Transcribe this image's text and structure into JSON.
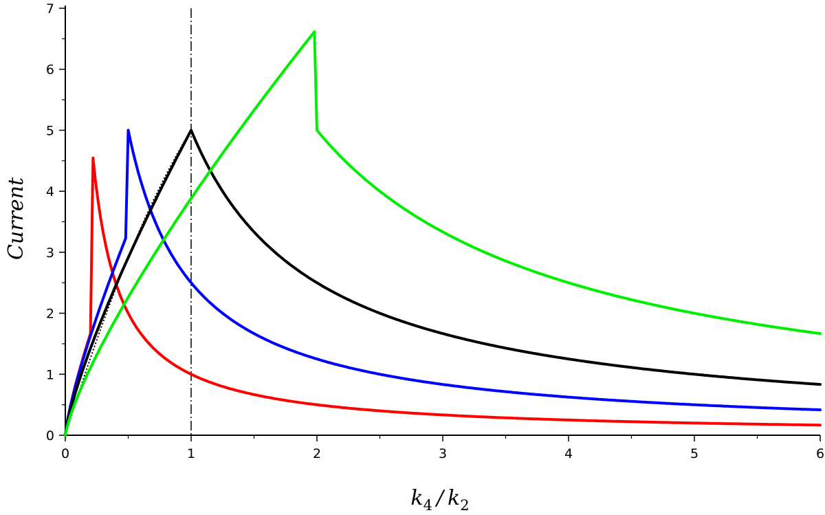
{
  "chart_data": {
    "type": "line",
    "xlabel": {
      "k": "k",
      "k_sub": "4",
      "slash": "/",
      "k2": "k",
      "k2_sub": "2"
    },
    "ylabel": "Current",
    "xlim": [
      0,
      6
    ],
    "ylim": [
      0,
      7
    ],
    "x_ticks": [
      "0",
      "1",
      "2",
      "3",
      "4",
      "5",
      "6"
    ],
    "y_ticks": [
      "0",
      "1",
      "2",
      "3",
      "4",
      "5",
      "6",
      "7"
    ],
    "grid": false,
    "legend": "none",
    "reference_line": {
      "x": 1,
      "style": "dash-dot",
      "color": "#000000"
    },
    "series": [
      {
        "color": "#ff0000",
        "peak_x": 0.2,
        "rise_scale": 5,
        "peak_value": 1.667,
        "decay_factor": 1
      },
      {
        "color": "#0000ff",
        "peak_x": 0.5,
        "rise_scale": 5,
        "peak_value": 3.333,
        "decay_factor": 2.5
      },
      {
        "color": "#000000",
        "peak_x": 1.0,
        "rise_scale": 5,
        "peak_value": 5.0,
        "decay_factor": 5
      },
      {
        "color": "#00ee00",
        "peak_x": 2.0,
        "rise_scale": 5,
        "peak_value": 6.667,
        "decay_factor": 10
      }
    ]
  }
}
